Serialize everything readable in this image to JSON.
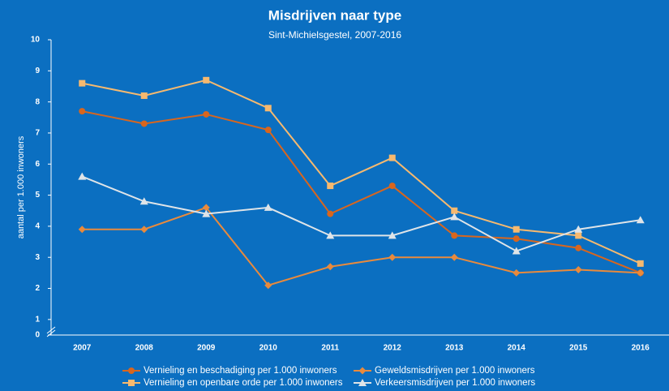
{
  "chart_data": {
    "type": "line",
    "title": "Misdrijven naar type",
    "subtitle": "Sint-Michielsgestel, 2007-2016",
    "y_label": "aantal per 1.000 inwoners",
    "categories": [
      "2007",
      "2008",
      "2009",
      "2010",
      "2011",
      "2012",
      "2013",
      "2014",
      "2015",
      "2016"
    ],
    "ylim": [
      0.5,
      10
    ],
    "yticks": [
      0,
      1,
      2,
      3,
      4,
      5,
      6,
      7,
      8,
      9,
      10
    ],
    "axis_break": true,
    "grid": false,
    "series": [
      {
        "name": "Vernieling en beschadiging per 1.000 inwoners",
        "color": "#d8661e",
        "marker": "circle",
        "values": [
          7.7,
          7.3,
          7.6,
          7.1,
          4.4,
          5.3,
          3.7,
          3.6,
          3.3,
          2.5
        ]
      },
      {
        "name": "Geweldsmisdrijven per 1.000 inwoners",
        "color": "#e98a3c",
        "marker": "diamond",
        "values": [
          3.9,
          3.9,
          4.6,
          2.1,
          2.7,
          3.0,
          3.0,
          2.5,
          2.6,
          2.5
        ]
      },
      {
        "name": "Vernieling en openbare orde per 1.000 inwoners",
        "color": "#f6b96f",
        "marker": "square",
        "values": [
          8.6,
          8.2,
          8.7,
          7.8,
          5.3,
          6.2,
          4.5,
          3.9,
          3.7,
          2.8
        ]
      },
      {
        "name": "Verkeersmisdrijven per 1.000 inwoners",
        "color": "#dfe4e8",
        "marker": "triangle",
        "values": [
          5.6,
          4.8,
          4.4,
          4.6,
          3.7,
          3.7,
          4.3,
          3.2,
          3.9,
          4.2
        ]
      }
    ]
  }
}
